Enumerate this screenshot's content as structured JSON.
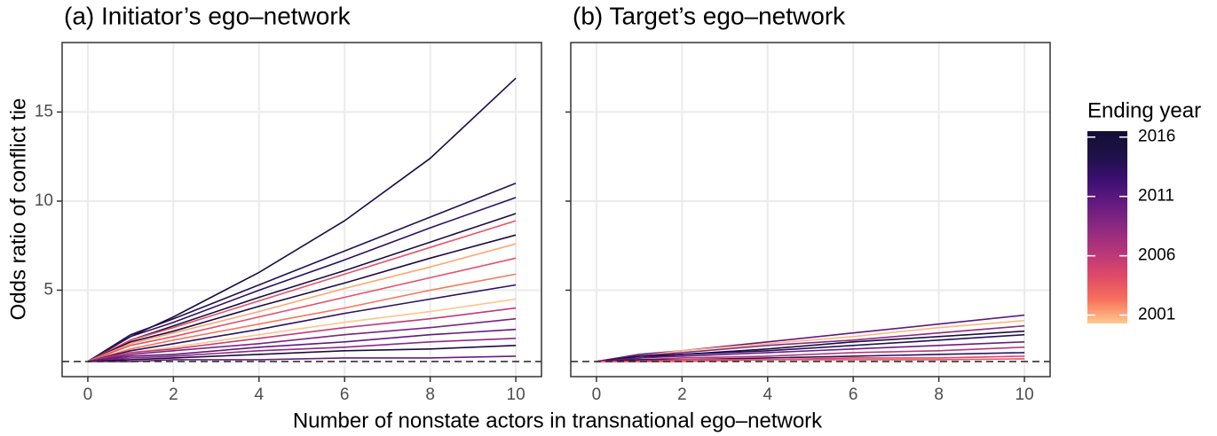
{
  "chart_data": [
    {
      "type": "line",
      "title": "(a) Initiator’s ego–network",
      "x": [
        0,
        1,
        2,
        4,
        6,
        8,
        10
      ],
      "xlim": [
        -0.6,
        10.6
      ],
      "xticks": [
        0,
        2,
        4,
        6,
        8,
        10
      ],
      "ylim": [
        0.15,
        18.9
      ],
      "yticks": [
        5,
        10,
        15
      ],
      "show_ytick_labels": true,
      "hline": 1,
      "grid": true,
      "series": [
        {
          "color": "#1b0c41",
          "values": [
            1,
            2.4,
            3.5,
            6.0,
            8.9,
            12.4,
            16.9
          ]
        },
        {
          "color": "#231151",
          "values": [
            1,
            2.5,
            3.4,
            5.3,
            7.2,
            9.1,
            11.0
          ]
        },
        {
          "color": "#2c115f",
          "values": [
            1,
            2.4,
            3.2,
            5.0,
            6.7,
            8.5,
            10.2
          ]
        },
        {
          "color": "#1b0c41",
          "values": [
            1,
            2.2,
            3.0,
            4.6,
            6.1,
            7.7,
            9.3
          ]
        },
        {
          "color": "#e85362",
          "values": [
            1,
            2.2,
            2.9,
            4.4,
            5.9,
            7.4,
            8.9
          ]
        },
        {
          "color": "#1b0c41",
          "values": [
            1,
            2.1,
            2.7,
            4.1,
            5.4,
            6.8,
            8.1
          ]
        },
        {
          "color": "#fca870",
          "values": [
            1,
            2.0,
            2.6,
            3.8,
            5.1,
            6.3,
            7.6
          ]
        },
        {
          "color": "#e4506a",
          "values": [
            1,
            1.9,
            2.4,
            3.5,
            4.6,
            5.7,
            6.8
          ]
        },
        {
          "color": "#f8765c",
          "values": [
            1,
            1.7,
            2.2,
            3.1,
            4.0,
            5.0,
            5.9
          ]
        },
        {
          "color": "#2c115f",
          "values": [
            1,
            1.6,
            2.0,
            2.8,
            3.7,
            4.5,
            5.3
          ]
        },
        {
          "color": "#fdc58d",
          "values": [
            1,
            1.5,
            1.8,
            2.5,
            3.2,
            3.8,
            4.5
          ]
        },
        {
          "color": "#c13a73",
          "values": [
            1,
            1.5,
            1.7,
            2.3,
            2.9,
            3.4,
            4.0
          ]
        },
        {
          "color": "#7b2382",
          "values": [
            1,
            1.4,
            1.6,
            2.0,
            2.5,
            2.9,
            3.4
          ]
        },
        {
          "color": "#5f187f",
          "values": [
            1,
            1.3,
            1.4,
            1.8,
            2.1,
            2.5,
            2.8
          ]
        },
        {
          "color": "#8c2981",
          "values": [
            1,
            1.2,
            1.3,
            1.6,
            1.8,
            2.1,
            2.3
          ]
        },
        {
          "color": "#1b0c41",
          "values": [
            1,
            1.1,
            1.2,
            1.4,
            1.6,
            1.7,
            1.9
          ]
        },
        {
          "color": "#6a1c81",
          "values": [
            1,
            1.0,
            1.1,
            1.1,
            1.2,
            1.2,
            1.3
          ]
        }
      ]
    },
    {
      "type": "line",
      "title": "(b) Target’s ego–network",
      "x": [
        0,
        1,
        2,
        4,
        6,
        8,
        10
      ],
      "xlim": [
        -0.6,
        10.6
      ],
      "xticks": [
        0,
        2,
        4,
        6,
        8,
        10
      ],
      "ylim": [
        0.15,
        18.9
      ],
      "yticks": [
        5,
        10,
        15
      ],
      "show_ytick_labels": false,
      "hline": 1,
      "grid": true,
      "series": [
        {
          "color": "#5f187f",
          "values": [
            1,
            1.4,
            1.6,
            2.1,
            2.6,
            3.1,
            3.6
          ]
        },
        {
          "color": "#fcb97e",
          "values": [
            1,
            1.3,
            1.6,
            2.0,
            2.4,
            2.9,
            3.3
          ]
        },
        {
          "color": "#8c2981",
          "values": [
            1,
            1.3,
            1.5,
            1.9,
            2.2,
            2.6,
            3.0
          ]
        },
        {
          "color": "#1b0c41",
          "values": [
            1,
            1.3,
            1.4,
            1.7,
            2.1,
            2.4,
            2.7
          ]
        },
        {
          "color": "#231151",
          "values": [
            1,
            1.2,
            1.4,
            1.6,
            1.9,
            2.2,
            2.5
          ]
        },
        {
          "color": "#6a1c81",
          "values": [
            1,
            1.2,
            1.3,
            1.5,
            1.7,
            1.9,
            2.1
          ]
        },
        {
          "color": "#b73779",
          "values": [
            1,
            1.1,
            1.2,
            1.3,
            1.5,
            1.6,
            1.8
          ]
        },
        {
          "color": "#2c115f",
          "values": [
            1,
            1.1,
            1.1,
            1.2,
            1.3,
            1.4,
            1.5
          ]
        },
        {
          "color": "#de4968",
          "values": [
            1,
            1.0,
            1.1,
            1.1,
            1.2,
            1.2,
            1.3
          ]
        },
        {
          "color": "#e85362",
          "values": [
            1,
            1.0,
            1.0,
            1.1,
            1.1,
            1.1,
            1.15
          ]
        }
      ]
    }
  ],
  "shared": {
    "xlabel": "Number of nonstate actors in transnational ego–network",
    "ylabel": "Odds ratio of conflict tie",
    "colorbar": {
      "title": "Ending year",
      "lim": [
        2000.3,
        2016.5
      ],
      "ticks": [
        2001,
        2006,
        2011,
        2016
      ],
      "colors": [
        "#fec98d",
        "#f7705c",
        "#de4968",
        "#b63679",
        "#8c2981",
        "#641a80",
        "#3b0f70",
        "#1d1147",
        "#140e36"
      ]
    }
  }
}
